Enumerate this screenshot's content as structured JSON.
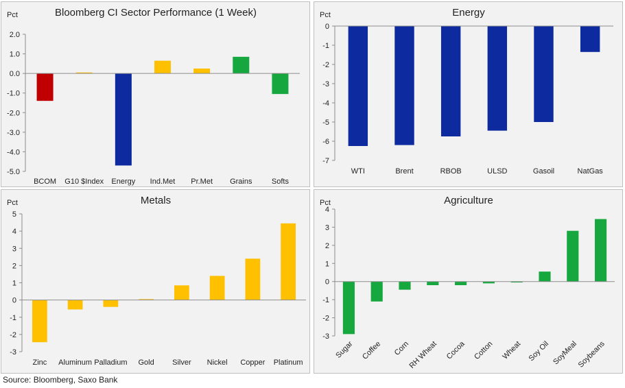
{
  "source": "Source: Bloomberg, Saxo Bank",
  "chart_data": [
    {
      "type": "bar",
      "title": "Bloomberg CI Sector Performance (1 Week)",
      "ylabel": "Pct",
      "xlabel": "",
      "ylim": [
        -5.0,
        2.0
      ],
      "yticks": [
        "2.0",
        "1.0",
        "0.0",
        "-1.0",
        "-2.0",
        "-3.0",
        "-4.0",
        "-5.0"
      ],
      "categories": [
        "BCOM",
        "G10 $Index",
        "Energy",
        "Ind.Met",
        "Pr.Met",
        "Grains",
        "Softs"
      ],
      "values": [
        -1.4,
        0.05,
        -4.7,
        0.65,
        0.25,
        0.85,
        -1.05
      ],
      "colors": [
        "#c00000",
        "#ffc000",
        "#0d2a9e",
        "#ffc000",
        "#ffc000",
        "#16a83e",
        "#16a83e"
      ],
      "rotate_labels": false
    },
    {
      "type": "bar",
      "title": "Energy",
      "ylabel": "Pct",
      "xlabel": "",
      "ylim": [
        -7,
        0
      ],
      "yticks": [
        "0",
        "-1",
        "-2",
        "-3",
        "-4",
        "-5",
        "-6",
        "-7"
      ],
      "categories": [
        "WTI",
        "Brent",
        "RBOB",
        "ULSD",
        "Gasoil",
        "NatGas"
      ],
      "values": [
        -6.25,
        -6.2,
        -5.75,
        -5.45,
        -5.0,
        -1.35
      ],
      "colors": [
        "#0d2a9e",
        "#0d2a9e",
        "#0d2a9e",
        "#0d2a9e",
        "#0d2a9e",
        "#0d2a9e"
      ],
      "rotate_labels": false
    },
    {
      "type": "bar",
      "title": "Metals",
      "ylabel": "Pct",
      "xlabel": "",
      "ylim": [
        -3,
        5
      ],
      "yticks": [
        "5",
        "4",
        "3",
        "2",
        "1",
        "0",
        "-1",
        "-2",
        "-3"
      ],
      "categories": [
        "Zinc",
        "Aluminum",
        "Palladium",
        "Gold",
        "Silver",
        "Nickel",
        "Copper",
        "Platinum"
      ],
      "values": [
        -2.45,
        -0.55,
        -0.4,
        0.05,
        0.85,
        1.4,
        2.4,
        4.45
      ],
      "colors": [
        "#ffc000",
        "#ffc000",
        "#ffc000",
        "#ffc000",
        "#ffc000",
        "#ffc000",
        "#ffc000",
        "#ffc000"
      ],
      "rotate_labels": false
    },
    {
      "type": "bar",
      "title": "Agriculture",
      "ylabel": "Pct",
      "xlabel": "",
      "ylim": [
        -3,
        4
      ],
      "yticks": [
        "4",
        "3",
        "2",
        "1",
        "0",
        "-1",
        "-2",
        "-3"
      ],
      "categories": [
        "Sugar",
        "Coffee",
        "Corn",
        "RH Wheat",
        "Cocoa",
        "Cotton",
        "Wheat",
        "Soy Oil",
        "SoyMeal",
        "Soybeans"
      ],
      "values": [
        -2.9,
        -1.1,
        -0.45,
        -0.2,
        -0.2,
        -0.1,
        -0.05,
        0.55,
        2.8,
        3.45
      ],
      "colors": [
        "#16a83e",
        "#16a83e",
        "#16a83e",
        "#16a83e",
        "#16a83e",
        "#16a83e",
        "#16a83e",
        "#16a83e",
        "#16a83e",
        "#16a83e"
      ],
      "rotate_labels": true
    }
  ]
}
